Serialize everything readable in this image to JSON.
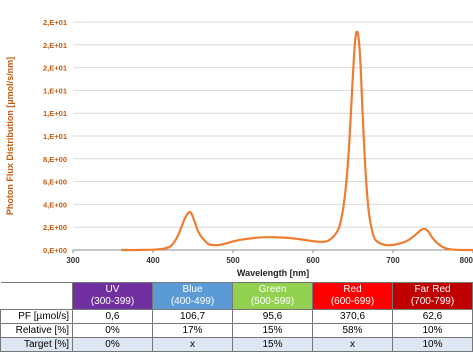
{
  "chart_data": {
    "type": "line",
    "title": "",
    "xlabel": "Wavelength [nm]",
    "ylabel": "Photon Flux Distribution [µmol/s/nm]",
    "xlim": [
      300,
      800
    ],
    "ylim": [
      0,
      20
    ],
    "x_ticks": [
      300,
      400,
      500,
      600,
      700,
      800
    ],
    "x_tick_labels": [
      "300",
      "400",
      "500",
      "600",
      "700",
      "800"
    ],
    "y_ticks": [
      0,
      2,
      4,
      6,
      8,
      10,
      12,
      14,
      16,
      18,
      20
    ],
    "y_tick_labels": [
      "0,E+00",
      "2,E+00",
      "4,E+00",
      "6,E+00",
      "8,E+00",
      "1,E+01",
      "1,E+01",
      "1,E+01",
      "2,E+01",
      "2,E+01",
      "2,E+01"
    ],
    "grid": true,
    "legend": "none",
    "series": [
      {
        "color": "#ed7d31",
        "x": [
          360,
          380,
          400,
          410,
          420,
          425,
          430,
          435,
          440,
          445,
          448,
          452,
          456,
          460,
          465,
          470,
          480,
          490,
          500,
          510,
          520,
          530,
          540,
          550,
          560,
          570,
          580,
          590,
          600,
          610,
          620,
          630,
          635,
          640,
          645,
          650,
          653,
          656,
          659,
          662,
          666,
          670,
          675,
          680,
          690,
          700,
          710,
          720,
          730,
          735,
          740,
          745,
          750,
          760,
          770,
          780,
          790,
          800
        ],
        "y": [
          0,
          0,
          0.03,
          0.08,
          0.25,
          0.55,
          1.1,
          1.9,
          2.8,
          3.3,
          3.2,
          2.5,
          1.7,
          1.2,
          0.8,
          0.5,
          0.42,
          0.55,
          0.75,
          0.9,
          1.0,
          1.08,
          1.12,
          1.12,
          1.1,
          1.05,
          0.98,
          0.88,
          0.78,
          0.72,
          0.85,
          1.6,
          2.6,
          4.8,
          9.0,
          15.5,
          18.6,
          19.0,
          16.8,
          12.0,
          6.5,
          3.2,
          1.4,
          0.75,
          0.45,
          0.45,
          0.6,
          0.9,
          1.45,
          1.75,
          1.85,
          1.55,
          1.0,
          0.35,
          0.08,
          0.02,
          0,
          0
        ]
      }
    ]
  },
  "table": {
    "bands": [
      {
        "name": "UV",
        "range": "(300-399)",
        "color": "#7030a0"
      },
      {
        "name": "Blue",
        "range": "(400-499)",
        "color": "#5b9bd5"
      },
      {
        "name": "Green",
        "range": "(500-599)",
        "color": "#92d050"
      },
      {
        "name": "Red",
        "range": "(600-699)",
        "color": "#ff0000"
      },
      {
        "name": "Far Red",
        "range": "(700-799)",
        "color": "#c00000"
      }
    ],
    "rows": [
      {
        "label": "PF [µmol/s]",
        "values": [
          "0,6",
          "106,7",
          "95,6",
          "370,6",
          "62,6"
        ]
      },
      {
        "label": "Relative [%]",
        "values": [
          "0%",
          "17%",
          "15%",
          "58%",
          "10%"
        ]
      },
      {
        "label": "Target [%]",
        "values": [
          "0%",
          "x",
          "15%",
          "x",
          "10%"
        ]
      }
    ]
  }
}
